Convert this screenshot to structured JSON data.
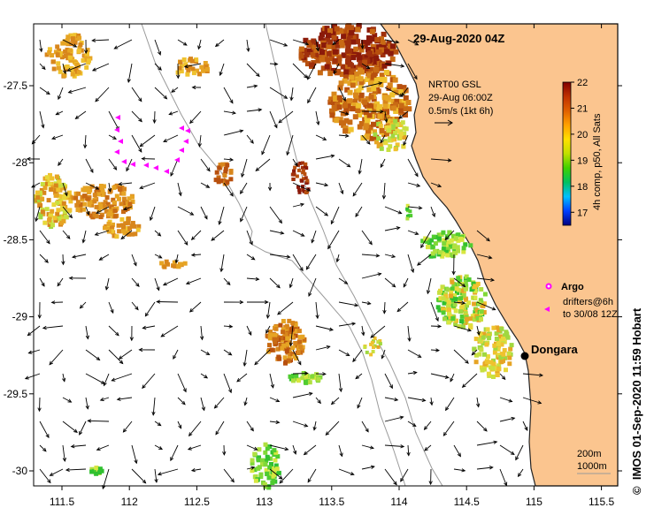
{
  "map": {
    "title": "29-Aug-2020 04Z",
    "region_colors": {
      "land": "#fbc58f",
      "sea": "#ffffff",
      "coastline": "#222222",
      "isobath": "#9a9a9a",
      "arrow": "#000000",
      "argo": "#ff00ff"
    },
    "lon_ticks": [
      "111.5",
      "112",
      "112.5",
      "113",
      "113.5",
      "114",
      "114.5",
      "115",
      "115.5"
    ],
    "lat_ticks": [
      "-27.5",
      "-28",
      "-28.5",
      "-29",
      "-29.5",
      "-30"
    ],
    "lon_values": [
      111.5,
      112,
      112.5,
      113,
      113.5,
      114,
      114.5,
      115,
      115.5
    ],
    "lat_values": [
      -27.5,
      -28,
      -28.5,
      -29,
      -29.5,
      -30
    ],
    "current_info": {
      "line1": "NRT00 GSL",
      "line2": "29-Aug 06:00Z",
      "line3": "0.5m/s (1kt 6h)"
    },
    "colorbar": {
      "label": "4h comp, p50, All Sats",
      "ticks": [
        "22",
        "21",
        "20",
        "19",
        "18",
        "17"
      ],
      "tick_values": [
        22,
        21,
        20,
        19,
        18,
        17
      ],
      "stops": [
        "#000080",
        "#0040ff",
        "#00c0ff",
        "#00c060",
        "#40d000",
        "#c0e000",
        "#ffe000",
        "#ffa000",
        "#e06000",
        "#c03000",
        "#800000"
      ]
    },
    "legend": {
      "argo_label": "Argo",
      "drifters_line1": "drifters@6h",
      "drifters_line2": "to 30/08 12Z"
    },
    "place": {
      "name": "Dongara"
    },
    "scale": {
      "line1": "200m",
      "line2": "1000m"
    },
    "credit": "IMOS 01-Sep-2020 11:59 Hobart",
    "copyright_symbol": "©"
  }
}
